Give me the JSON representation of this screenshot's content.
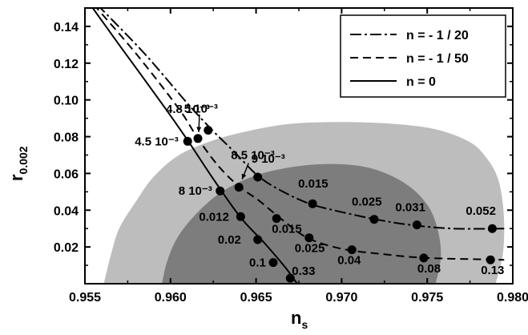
{
  "chart_data": {
    "type": "line",
    "xlabel": "n",
    "xlabel_sub": "s",
    "ylabel": "r",
    "ylabel_sub": "0.002",
    "xlim": [
      0.955,
      0.98
    ],
    "ylim": [
      0.0,
      0.15
    ],
    "x_ticks": [
      "0.955",
      "0.960",
      "0.965",
      "0.970",
      "0.975",
      "0.980"
    ],
    "y_ticks": [
      "0.02",
      "0.04",
      "0.06",
      "0.08",
      "0.10",
      "0.12",
      "0.14"
    ],
    "legend_position": "top-right",
    "contours": {
      "outer": [
        [
          0.9561,
          0.0
        ],
        [
          0.9565,
          0.015
        ],
        [
          0.957,
          0.03
        ],
        [
          0.958,
          0.045
        ],
        [
          0.959,
          0.058
        ],
        [
          0.9605,
          0.07
        ],
        [
          0.9625,
          0.078
        ],
        [
          0.9645,
          0.083
        ],
        [
          0.967,
          0.087
        ],
        [
          0.97,
          0.088
        ],
        [
          0.973,
          0.087
        ],
        [
          0.9755,
          0.084
        ],
        [
          0.9775,
          0.077
        ],
        [
          0.9785,
          0.068
        ],
        [
          0.9791,
          0.058
        ],
        [
          0.9794,
          0.045
        ],
        [
          0.9795,
          0.03
        ],
        [
          0.9794,
          0.015
        ],
        [
          0.979,
          0.0
        ]
      ],
      "inner": [
        [
          0.9595,
          0.0
        ],
        [
          0.9598,
          0.012
        ],
        [
          0.9604,
          0.025
        ],
        [
          0.9615,
          0.038
        ],
        [
          0.963,
          0.05
        ],
        [
          0.965,
          0.059
        ],
        [
          0.9675,
          0.064
        ],
        [
          0.97,
          0.065
        ],
        [
          0.972,
          0.062
        ],
        [
          0.9738,
          0.054
        ],
        [
          0.975,
          0.043
        ],
        [
          0.9756,
          0.03
        ],
        [
          0.9758,
          0.015
        ],
        [
          0.9755,
          0.0
        ]
      ]
    },
    "series": [
      {
        "name": "n = - 1 / 20",
        "dash": "dashdot",
        "curve": [
          [
            0.9557,
            0.152
          ],
          [
            0.9585,
            0.125
          ],
          [
            0.961,
            0.098
          ],
          [
            0.9625,
            0.083
          ],
          [
            0.9637,
            0.072
          ],
          [
            0.9652,
            0.058
          ],
          [
            0.9668,
            0.049
          ],
          [
            0.9683,
            0.043
          ],
          [
            0.97,
            0.039
          ],
          [
            0.972,
            0.035
          ],
          [
            0.974,
            0.032
          ],
          [
            0.9765,
            0.03
          ],
          [
            0.9795,
            0.03
          ]
        ],
        "points": [
          {
            "x": 0.9622,
            "y": 0.0835,
            "label": "5 10⁻³"
          },
          {
            "x": 0.9651,
            "y": 0.058,
            "label": "9 10⁻³"
          },
          {
            "x": 0.9683,
            "y": 0.0435,
            "label": "0.015"
          },
          {
            "x": 0.9719,
            "y": 0.035,
            "label": "0.025"
          },
          {
            "x": 0.9744,
            "y": 0.032,
            "label": "0.031"
          },
          {
            "x": 0.9788,
            "y": 0.03,
            "label": "0.052"
          }
        ]
      },
      {
        "name": "n = - 1 / 50",
        "dash": "dashed",
        "curve": [
          [
            0.9555,
            0.152
          ],
          [
            0.958,
            0.125
          ],
          [
            0.9605,
            0.095
          ],
          [
            0.9616,
            0.079
          ],
          [
            0.9628,
            0.064
          ],
          [
            0.964,
            0.053
          ],
          [
            0.9652,
            0.045
          ],
          [
            0.9665,
            0.035
          ],
          [
            0.968,
            0.025
          ],
          [
            0.97,
            0.019
          ],
          [
            0.9725,
            0.016
          ],
          [
            0.975,
            0.014
          ],
          [
            0.9795,
            0.013
          ]
        ],
        "points": [
          {
            "x": 0.9616,
            "y": 0.079,
            "label": "4.8 10⁻³"
          },
          {
            "x": 0.964,
            "y": 0.0525,
            "label": "8.5 10⁻³"
          },
          {
            "x": 0.9662,
            "y": 0.0355,
            "label": "0.015"
          },
          {
            "x": 0.9681,
            "y": 0.025,
            "label": "0.025"
          },
          {
            "x": 0.9706,
            "y": 0.0185,
            "label": "0.04"
          },
          {
            "x": 0.9748,
            "y": 0.014,
            "label": "0.08"
          },
          {
            "x": 0.9787,
            "y": 0.013,
            "label": "0.13"
          }
        ]
      },
      {
        "name": "n = 0",
        "dash": "solid",
        "curve": [
          [
            0.9553,
            0.152
          ],
          [
            0.957,
            0.13
          ],
          [
            0.9595,
            0.098
          ],
          [
            0.961,
            0.078
          ],
          [
            0.9625,
            0.057
          ],
          [
            0.9641,
            0.036
          ],
          [
            0.9655,
            0.022
          ],
          [
            0.9667,
            0.009
          ],
          [
            0.9674,
            0.0
          ]
        ],
        "points": [
          {
            "x": 0.961,
            "y": 0.0775,
            "label": "4.5 10⁻³"
          },
          {
            "x": 0.9629,
            "y": 0.0505,
            "label": "8 10⁻³"
          },
          {
            "x": 0.9641,
            "y": 0.0365,
            "label": "0.012"
          },
          {
            "x": 0.9651,
            "y": 0.024,
            "label": "0.02"
          },
          {
            "x": 0.966,
            "y": 0.0115,
            "label": "0.1"
          },
          {
            "x": 0.967,
            "y": 0.003,
            "label": "0.33"
          }
        ]
      }
    ]
  }
}
